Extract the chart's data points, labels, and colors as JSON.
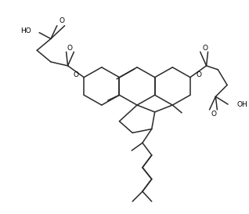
{
  "background_color": "#ffffff",
  "line_color": "#2a2a2a",
  "line_width": 1.1,
  "figsize": [
    3.18,
    2.73
  ],
  "dpi": 100,
  "xlim": [
    0,
    318
  ],
  "ylim": [
    0,
    273
  ]
}
